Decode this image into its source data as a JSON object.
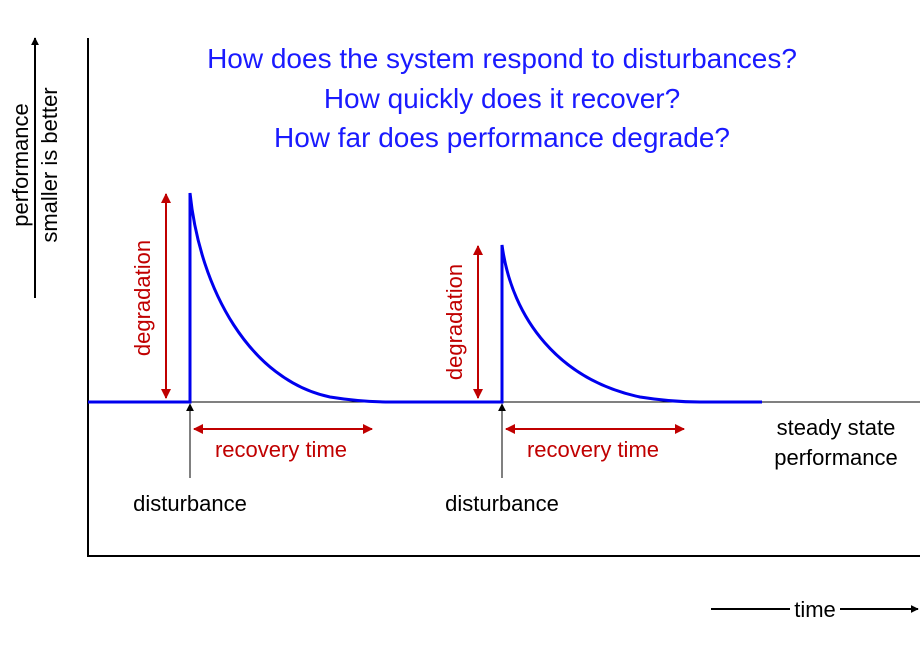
{
  "questions": [
    "How does the system respond to disturbances?",
    "How quickly does it recover?",
    "How far does performance degrade?"
  ],
  "y_axis": {
    "line1": "performance",
    "line2": "smaller is better"
  },
  "x_axis": {
    "label": "time"
  },
  "events": [
    {
      "degradation_label": "degradation",
      "recovery_label": "recovery time",
      "disturbance_label": "disturbance"
    },
    {
      "degradation_label": "degradation",
      "recovery_label": "recovery time",
      "disturbance_label": "disturbance"
    }
  ],
  "steady_state": {
    "line1": "steady state",
    "line2": "performance"
  },
  "colors": {
    "curve": "#0000ee",
    "annotation": "#c00000",
    "question_text": "#1a1aff",
    "axis": "#000000"
  }
}
